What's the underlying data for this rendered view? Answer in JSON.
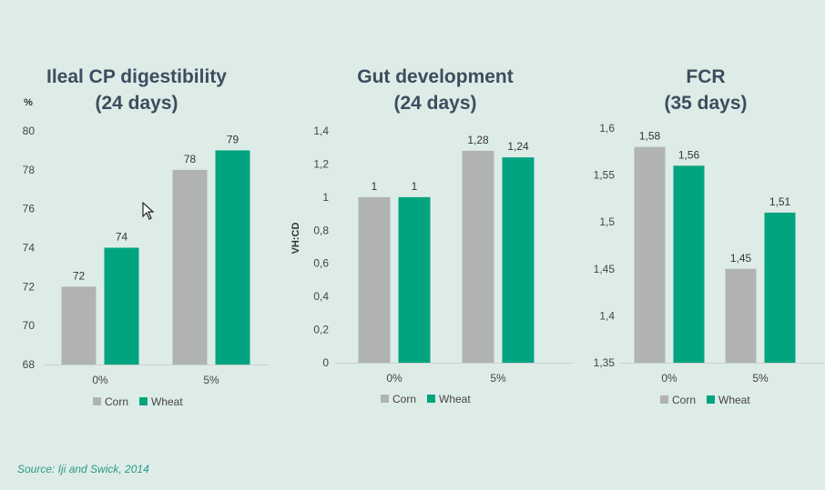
{
  "colors": {
    "corn": "#b1b3b3",
    "wheat": "#00a47f",
    "axis": "#c9d2d0",
    "title": "#3a4e5e"
  },
  "legend": {
    "corn": "Corn",
    "wheat": "Wheat"
  },
  "source": "Source: Iji and Swick, 2014",
  "chart_data": [
    {
      "type": "bar",
      "title_line1": "Ileal CP digestibility",
      "title_line2": "(24 days)",
      "ylabel": "%",
      "categories": [
        "0%",
        "5%"
      ],
      "ylim": [
        68,
        80
      ],
      "yticks": [
        "68",
        "70",
        "72",
        "74",
        "76",
        "78",
        "80"
      ],
      "series": [
        {
          "name": "Corn",
          "values": [
            72,
            78
          ],
          "labels": [
            "72",
            "78"
          ]
        },
        {
          "name": "Wheat",
          "values": [
            74,
            79
          ],
          "labels": [
            "74",
            "79"
          ]
        }
      ]
    },
    {
      "type": "bar",
      "title_line1": "Gut development",
      "title_line2": "(24 days)",
      "ylabel": "VH:CD",
      "categories": [
        "0%",
        "5%"
      ],
      "ylim": [
        0,
        1.4
      ],
      "yticks": [
        "0",
        "0,2",
        "0,4",
        "0,6",
        "0,8",
        "1",
        "1,2",
        "1,4"
      ],
      "series": [
        {
          "name": "Corn",
          "values": [
            1,
            1.28
          ],
          "labels": [
            "1",
            "1,28"
          ]
        },
        {
          "name": "Wheat",
          "values": [
            1,
            1.24
          ],
          "labels": [
            "1",
            "1,24"
          ]
        }
      ]
    },
    {
      "type": "bar",
      "title_line1": "FCR",
      "title_line2": "(35 days)",
      "ylabel": "",
      "categories": [
        "0%",
        "5%"
      ],
      "ylim": [
        1.35,
        1.6
      ],
      "yticks": [
        "1,35",
        "1,4",
        "1,45",
        "1,5",
        "1,55",
        "1,6"
      ],
      "series": [
        {
          "name": "Corn",
          "values": [
            1.58,
            1.45
          ],
          "labels": [
            "1,58",
            "1,45"
          ]
        },
        {
          "name": "Wheat",
          "values": [
            1.56,
            1.51
          ],
          "labels": [
            "1,56",
            "1,51"
          ]
        }
      ]
    }
  ]
}
